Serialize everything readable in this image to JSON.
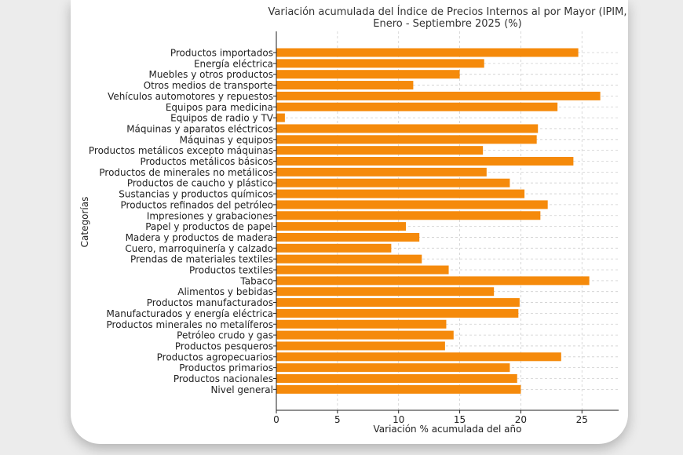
{
  "chart_data": {
    "type": "bar",
    "orientation": "horizontal",
    "title": "Variación acumulada del Índice de Precios Internos al por Mayor (IPIM,\nEnero - Septiembre 2025 (%)",
    "xlabel": "Variación % acumulada del año",
    "ylabel": "Categorías",
    "xlim": [
      0,
      28
    ],
    "xticks": [
      0,
      5,
      10,
      15,
      20,
      25
    ],
    "grid": true,
    "bar_color": "#f58a0b",
    "categories": [
      "Productos importados",
      "Energía eléctrica",
      "Muebles y otros productos",
      "Otros medios de transporte",
      "Vehículos automotores y repuestos",
      "Equipos para medicina",
      "Equipos de radio y TV",
      "Máquinas y aparatos eléctricos",
      "Máquinas y equipos",
      "Productos metálicos excepto máquinas",
      "Productos metálicos básicos",
      "Productos de minerales no metálicos",
      "Productos de caucho y plástico",
      "Sustancias y productos químicos",
      "Productos refinados del petróleo",
      "Impresiones y grabaciones",
      "Papel y productos de papel",
      "Madera y productos de madera",
      "Cuero, marroquinería y calzado",
      "Prendas de materiales textiles",
      "Productos textiles",
      "Tabaco",
      "Alimentos y bebidas",
      "Productos manufacturados",
      "Manufacturados y energía eléctrica",
      "Productos minerales no metalíferos",
      "Petróleo crudo y gas",
      "Productos pesqueros",
      "Productos agropecuarios",
      "Productos primarios",
      "Productos nacionales",
      "Nivel general"
    ],
    "values": [
      24.7,
      17.0,
      15.0,
      11.2,
      26.5,
      23.0,
      0.7,
      21.4,
      21.3,
      16.9,
      24.3,
      17.2,
      19.1,
      20.3,
      22.2,
      21.6,
      10.6,
      11.7,
      9.4,
      11.9,
      14.1,
      25.6,
      17.8,
      19.9,
      19.8,
      13.9,
      14.5,
      13.8,
      23.3,
      19.1,
      19.7,
      20.0
    ]
  }
}
